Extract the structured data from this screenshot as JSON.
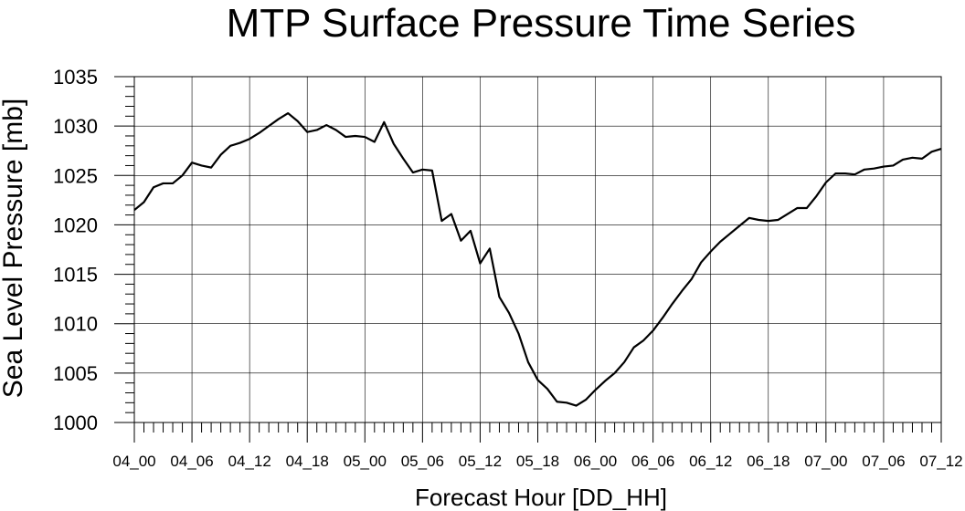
{
  "chart_data": {
    "type": "line",
    "title": "MTP Surface Pressure Time Series",
    "xlabel": "Forecast Hour [DD_HH]",
    "ylabel": "Sea Level Pressure [mb]",
    "x_ticks": [
      "04_00",
      "04_06",
      "04_12",
      "04_18",
      "05_00",
      "05_06",
      "05_12",
      "05_18",
      "06_00",
      "06_06",
      "06_12",
      "06_18",
      "07_00",
      "07_06",
      "07_12"
    ],
    "xlim_hours": [
      0,
      84
    ],
    "ylim": [
      1000,
      1035
    ],
    "y_ticks": [
      1000,
      1005,
      1010,
      1015,
      1020,
      1025,
      1030,
      1035
    ],
    "grid": true,
    "legend": "none",
    "line_color": "#000000",
    "series": [
      {
        "hours": [
          0,
          1,
          2,
          3,
          4,
          5,
          6,
          7,
          8,
          9,
          10,
          11,
          12,
          13,
          14,
          15,
          16,
          17,
          18,
          19,
          20,
          21,
          22,
          23,
          24,
          25,
          26,
          27,
          28,
          29,
          30,
          31,
          32,
          33,
          34,
          35,
          36,
          37,
          38,
          39,
          40,
          41,
          42,
          43,
          44,
          45,
          46,
          47,
          48,
          49,
          50,
          51,
          52,
          53,
          54,
          55,
          56,
          57,
          58,
          59,
          60,
          61,
          62,
          63,
          64,
          65,
          66,
          67,
          68,
          69,
          70,
          71,
          72,
          73,
          74,
          75,
          76,
          77,
          78,
          79,
          80,
          81,
          82,
          83,
          84
        ],
        "values": [
          1021.5,
          1022.3,
          1023.8,
          1024.2,
          1024.2,
          1025.0,
          1026.3,
          1026.0,
          1025.8,
          1027.1,
          1028.0,
          1028.3,
          1028.7,
          1029.3,
          1030.0,
          1030.7,
          1031.3,
          1030.5,
          1029.4,
          1029.6,
          1030.1,
          1029.6,
          1028.9,
          1029.0,
          1028.9,
          1028.4,
          1030.4,
          1028.2,
          1026.7,
          1025.3,
          1025.6,
          1025.5,
          1020.4,
          1021.1,
          1018.4,
          1019.4,
          1016.1,
          1017.6,
          1012.7,
          1011.1,
          1009.0,
          1006.1,
          1004.3,
          1003.4,
          1002.1,
          1002.0,
          1001.7,
          1002.3,
          1003.3,
          1004.2,
          1005.0,
          1006.1,
          1007.6,
          1008.3,
          1009.3,
          1010.6,
          1012.0,
          1013.3,
          1014.5,
          1016.2,
          1017.3,
          1018.3,
          1019.1,
          1019.9,
          1020.7,
          1020.5,
          1020.4,
          1020.5,
          1021.1,
          1021.7,
          1021.7,
          1022.9,
          1024.3,
          1025.2,
          1025.2,
          1025.1,
          1025.6,
          1025.7,
          1025.9,
          1026.0,
          1026.6,
          1026.8,
          1026.7,
          1027.4,
          1027.7
        ]
      }
    ]
  }
}
